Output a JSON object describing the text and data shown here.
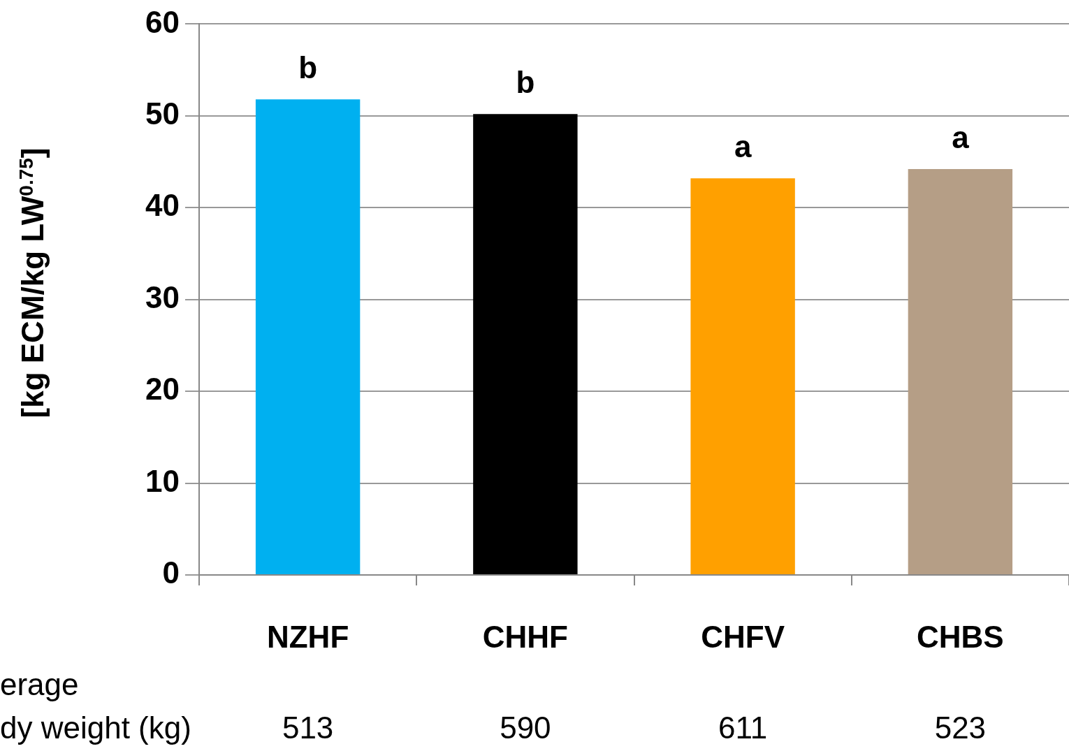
{
  "chart_data": {
    "type": "bar",
    "ylabel": "[kg ECM/kg LW$^{0.75}$]",
    "categories": [
      "NZHF",
      "CHHF",
      "CHFV",
      "CHBS"
    ],
    "values": [
      51.8,
      50.2,
      43.2,
      44.2
    ],
    "colors": [
      "#00b0f0",
      "#000000",
      "#ffa000",
      "#b59e86"
    ],
    "ylim": [
      0,
      60
    ],
    "yticks": [
      0,
      10,
      20,
      30,
      40,
      50,
      60
    ],
    "grid": "y",
    "annotations": [
      {
        "text": "b",
        "x": "NZHF",
        "y": 51.8
      },
      {
        "text": "b",
        "x": "CHHF",
        "y": 50.2
      },
      {
        "text": "a",
        "x": "CHFV",
        "y": 43.2
      },
      {
        "text": "a",
        "x": "CHBS",
        "y": 44.2
      },
      "erage",
      "dy weight (kg)",
      "513",
      "590",
      "611",
      "523"
    ]
  }
}
